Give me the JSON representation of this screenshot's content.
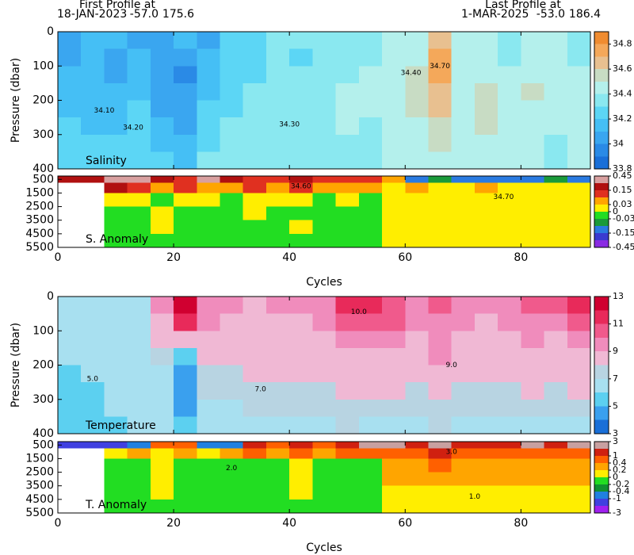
{
  "header": {
    "first_title": "First Profile at",
    "first_date": "18-JAN-2023",
    "first_lat": "-57.0",
    "first_lon": "175.6",
    "last_title": "Last Profile at",
    "last_date": "1-MAR-2025",
    "last_lat": "-53.0",
    "last_lon": "186.4"
  },
  "chart_data": [
    {
      "type": "heatmap",
      "label": "Salinity",
      "ylabel": "Pressure (dbar)",
      "x": [
        2,
        6,
        10,
        14,
        18,
        22,
        26,
        30,
        34,
        38,
        42,
        46,
        50,
        54,
        58,
        62,
        66,
        70,
        74,
        78,
        82,
        86,
        90
      ],
      "y": [
        25,
        75,
        125,
        175,
        225,
        275,
        325,
        375
      ],
      "values": [
        [
          34.05,
          34.1,
          34.1,
          34.05,
          34.0,
          34.1,
          34.0,
          34.2,
          34.2,
          34.3,
          34.3,
          34.3,
          34.3,
          34.3,
          34.4,
          34.45,
          34.65,
          34.45,
          34.4,
          34.35,
          34.45,
          34.4,
          34.35
        ],
        [
          34.05,
          34.1,
          34.05,
          34.1,
          34.0,
          34.05,
          34.1,
          34.2,
          34.25,
          34.3,
          34.25,
          34.3,
          34.35,
          34.35,
          34.45,
          34.45,
          34.7,
          34.45,
          34.4,
          34.35,
          34.45,
          34.45,
          34.35
        ],
        [
          34.1,
          34.1,
          34.05,
          34.15,
          34.0,
          33.95,
          34.1,
          34.2,
          34.2,
          34.3,
          34.3,
          34.35,
          34.35,
          34.4,
          34.45,
          34.5,
          34.7,
          34.45,
          34.45,
          34.4,
          34.45,
          34.45,
          34.4
        ],
        [
          34.1,
          34.1,
          34.1,
          34.15,
          34.0,
          34.0,
          34.15,
          34.25,
          34.3,
          34.3,
          34.35,
          34.35,
          34.4,
          34.4,
          34.45,
          34.5,
          34.65,
          34.45,
          34.5,
          34.4,
          34.5,
          34.45,
          34.4
        ],
        [
          34.15,
          34.1,
          34.1,
          34.2,
          34.05,
          34.0,
          34.2,
          34.25,
          34.3,
          34.35,
          34.35,
          34.35,
          34.4,
          34.4,
          34.45,
          34.5,
          34.6,
          34.45,
          34.5,
          34.4,
          34.45,
          34.4,
          34.4
        ],
        [
          34.2,
          34.15,
          34.15,
          34.2,
          34.1,
          34.0,
          34.2,
          34.3,
          34.3,
          34.35,
          34.35,
          34.35,
          34.4,
          34.35,
          34.45,
          34.45,
          34.55,
          34.45,
          34.5,
          34.45,
          34.4,
          34.4,
          34.4
        ],
        [
          34.2,
          34.2,
          34.2,
          34.25,
          34.15,
          34.1,
          34.25,
          34.3,
          34.35,
          34.35,
          34.3,
          34.35,
          34.35,
          34.35,
          34.4,
          34.4,
          34.5,
          34.4,
          34.45,
          34.4,
          34.4,
          34.35,
          34.4
        ],
        [
          34.25,
          34.25,
          34.2,
          34.25,
          34.2,
          34.15,
          34.3,
          34.3,
          34.35,
          34.35,
          34.35,
          34.35,
          34.35,
          34.35,
          34.4,
          34.4,
          34.45,
          34.4,
          34.4,
          34.4,
          34.4,
          34.35,
          34.4
        ]
      ],
      "xlim": [
        0,
        92
      ],
      "ylim": [
        0,
        400
      ],
      "y_inverted": true,
      "xticks": [
        0,
        20,
        40,
        60,
        80
      ],
      "yticks": [
        0,
        100,
        200,
        300,
        400
      ],
      "show_xtick_labels": false,
      "levels": [
        33.8,
        33.9,
        34.0,
        34.1,
        34.2,
        34.3,
        34.4,
        34.5,
        34.6,
        34.7,
        34.8,
        34.9
      ],
      "colors": [
        "#1a6fd8",
        "#2a8ae6",
        "#3aa6f0",
        "#45bff5",
        "#5cd6f5",
        "#8ae8f0",
        "#b4f0ec",
        "#c8dcc4",
        "#e8c090",
        "#f4a85a",
        "#f08c30"
      ],
      "colorbar_ticks": [
        34.8,
        34.6,
        34.4,
        34.2,
        34,
        33.8
      ],
      "annotations": [
        {
          "text": "34.70",
          "x": 66,
          "y": 100
        },
        {
          "text": "34.40",
          "x": 61,
          "y": 120
        },
        {
          "text": "34.30",
          "x": 40,
          "y": 270
        },
        {
          "text": "34.10",
          "x": 8,
          "y": 230
        },
        {
          "text": "34.20",
          "x": 13,
          "y": 280
        }
      ]
    },
    {
      "type": "heatmap",
      "label": "S. Anomaly",
      "xlabel": "Cycles",
      "x": [
        2,
        6,
        10,
        14,
        18,
        22,
        26,
        30,
        34,
        38,
        42,
        46,
        50,
        54,
        58,
        62,
        66,
        70,
        74,
        78,
        82,
        86,
        90
      ],
      "y": [
        500,
        1000,
        2000,
        3000,
        4000,
        5000
      ],
      "values": [
        [
          0.2,
          0.2,
          0.3,
          0.3,
          0.2,
          0.1,
          0.3,
          0.2,
          0.1,
          0.1,
          0.2,
          0.1,
          0.1,
          0.1,
          0.05,
          -0.1,
          -0.05,
          -0.1,
          -0.1,
          -0.15,
          -0.1,
          -0.05,
          -0.1
        ],
        [
          null,
          null,
          0.2,
          0.1,
          0.05,
          0.1,
          0.05,
          0.05,
          0.1,
          0.05,
          0.1,
          0.05,
          0.05,
          0.05,
          0.02,
          0.05,
          0.02,
          0.02,
          0.05,
          0.02,
          0.02,
          0.02,
          0.02
        ],
        [
          null,
          null,
          0.02,
          0.02,
          -0.02,
          0.02,
          0.02,
          -0.02,
          0.02,
          0.01,
          0.02,
          -0.01,
          0.02,
          -0.01,
          0.01,
          0.01,
          0.01,
          0.01,
          0.01,
          0.01,
          0.01,
          0.01,
          0.01
        ],
        [
          null,
          null,
          -0.02,
          -0.02,
          0.01,
          -0.02,
          -0.02,
          -0.02,
          0.01,
          -0.02,
          -0.02,
          -0.02,
          -0.02,
          -0.02,
          0.01,
          0.01,
          0.01,
          0.01,
          0.01,
          0.01,
          0.01,
          0.01,
          0.01
        ],
        [
          null,
          null,
          -0.01,
          -0.02,
          0.01,
          -0.02,
          -0.02,
          -0.02,
          -0.02,
          -0.02,
          0.01,
          -0.02,
          -0.02,
          -0.02,
          0.01,
          0.01,
          0.01,
          0.01,
          0.01,
          0.01,
          0.01,
          0.01,
          0.01
        ],
        [
          null,
          null,
          -0.02,
          -0.02,
          -0.02,
          -0.02,
          -0.02,
          -0.02,
          -0.02,
          -0.02,
          -0.02,
          -0.02,
          -0.02,
          -0.02,
          0.01,
          0.01,
          0.01,
          0.01,
          0.01,
          0.01,
          0.01,
          0.01,
          0.01
        ]
      ],
      "xlim": [
        0,
        92
      ],
      "ylim": [
        250,
        5500
      ],
      "y_inverted": true,
      "xticks": [
        0,
        20,
        40,
        60,
        80
      ],
      "yticks": [
        500,
        1500,
        2500,
        3500,
        4500,
        5500
      ],
      "show_xtick_labels": true,
      "levels": [
        -0.45,
        -0.3,
        -0.15,
        -0.09,
        -0.03,
        0,
        0.03,
        0.09,
        0.15,
        0.3,
        0.45
      ],
      "colors": [
        "#8a2be2",
        "#3a3ad0",
        "#2a7ae0",
        "#1a9a3a",
        "#22dd22",
        "#ffee00",
        "#ffa500",
        "#e03020",
        "#b01010",
        "#d8a0a0"
      ],
      "colorbar_ticks": [
        0.45,
        0.15,
        0.03,
        0,
        -0.03,
        -0.15,
        -0.45
      ],
      "annotations": [
        {
          "text": "34.60",
          "x": 42,
          "y": 1000
        },
        {
          "text": "34.70",
          "x": 77,
          "y": 1800
        }
      ]
    },
    {
      "type": "heatmap",
      "label": "Temperature",
      "ylabel": "Pressure (dbar)",
      "x": [
        2,
        6,
        10,
        14,
        18,
        22,
        26,
        30,
        34,
        38,
        42,
        46,
        50,
        54,
        58,
        62,
        66,
        70,
        74,
        78,
        82,
        86,
        90
      ],
      "y": [
        25,
        75,
        125,
        175,
        225,
        275,
        325,
        375
      ],
      "values": [
        [
          6.5,
          6.5,
          6.5,
          6.8,
          9,
          12,
          9.5,
          9,
          8.5,
          9,
          9,
          9,
          11,
          11.5,
          10.5,
          9.5,
          10,
          9.5,
          9,
          9.5,
          10,
          10,
          11.5
        ],
        [
          6.5,
          6.5,
          6.5,
          6.8,
          8.5,
          11,
          9,
          8.5,
          8.5,
          8.8,
          8.5,
          9,
          10,
          10.5,
          10,
          9,
          9.8,
          9,
          8.8,
          9,
          9.5,
          9.5,
          10
        ],
        [
          6.5,
          6.5,
          6.3,
          6.5,
          8,
          8,
          8.5,
          8.5,
          8.3,
          8.5,
          8.5,
          8.5,
          9,
          9,
          9,
          8.5,
          9.5,
          8.5,
          8.5,
          8.5,
          9,
          8.8,
          9
        ],
        [
          6.3,
          6.3,
          6.2,
          6.5,
          7.5,
          5,
          8,
          8,
          8,
          8.2,
          8.3,
          8.3,
          8.5,
          8.5,
          8.5,
          8.3,
          9,
          8.3,
          8.2,
          8.3,
          8.5,
          8.5,
          8.5
        ],
        [
          5.5,
          6,
          6.1,
          6.3,
          6.8,
          4.5,
          7.5,
          7.5,
          8,
          8,
          8,
          8,
          8.2,
          8.2,
          8.2,
          8,
          8.5,
          8,
          8,
          8,
          8.2,
          8.2,
          8.2
        ],
        [
          5.5,
          5.8,
          6,
          6.2,
          6.5,
          4.5,
          7,
          7.2,
          7.5,
          7.8,
          7.8,
          7.5,
          8,
          8,
          8,
          7.5,
          8,
          7.5,
          7.5,
          7.8,
          8,
          7.5,
          8
        ],
        [
          5.5,
          5.5,
          6,
          6.2,
          6.5,
          4.5,
          6.8,
          6.8,
          7.2,
          7.2,
          7.2,
          7.5,
          7.5,
          7.5,
          7.2,
          7,
          7.5,
          7,
          7,
          7.2,
          7.5,
          7.2,
          7.5
        ],
        [
          5.5,
          5.5,
          5.8,
          6.2,
          6.5,
          5,
          6.5,
          6.5,
          6.8,
          6.8,
          6.8,
          6.8,
          7,
          6.8,
          6.8,
          6.8,
          7,
          6.8,
          6.8,
          6.8,
          6.8,
          6.8,
          6.8
        ]
      ],
      "xlim": [
        0,
        92
      ],
      "ylim": [
        0,
        400
      ],
      "y_inverted": true,
      "xticks": [
        0,
        20,
        40,
        60,
        80
      ],
      "yticks": [
        0,
        100,
        200,
        300,
        400
      ],
      "show_xtick_labels": false,
      "levels": [
        3,
        4,
        5,
        6,
        7,
        8,
        9,
        10,
        11,
        12,
        13
      ],
      "colors": [
        "#1a6fd8",
        "#3aa0ee",
        "#5cd0f0",
        "#a8e0f0",
        "#b8d4e2",
        "#f0b8d4",
        "#f08cbc",
        "#f05a8c",
        "#e82a5a",
        "#d00030"
      ],
      "colorbar_ticks": [
        13,
        11,
        9,
        7,
        5,
        3
      ],
      "annotations": [
        {
          "text": "7.0",
          "x": 35,
          "y": 270
        },
        {
          "text": "9.0",
          "x": 68,
          "y": 200
        },
        {
          "text": "10.0",
          "x": 52,
          "y": 45
        },
        {
          "text": "5.0",
          "x": 6,
          "y": 240
        }
      ]
    },
    {
      "type": "heatmap",
      "label": "T. Anomaly",
      "xlabel": "Cycles",
      "x": [
        2,
        6,
        10,
        14,
        18,
        22,
        26,
        30,
        34,
        38,
        42,
        46,
        50,
        54,
        58,
        62,
        66,
        70,
        74,
        78,
        82,
        86,
        90
      ],
      "y": [
        500,
        1000,
        2000,
        3000,
        4000,
        5000
      ],
      "values": [
        [
          -1.5,
          -1.5,
          -1.5,
          -0.5,
          0.5,
          0.5,
          -1,
          -0.5,
          1,
          0.5,
          1,
          0.5,
          1,
          2,
          2.5,
          1.5,
          2.5,
          1.5,
          1.5,
          1.5,
          2,
          1.5,
          2
        ],
        [
          null,
          null,
          0.1,
          0.3,
          0.1,
          0.3,
          0.1,
          0.3,
          0.5,
          0.3,
          0.5,
          0.3,
          0.5,
          0.6,
          0.8,
          0.7,
          1.2,
          0.6,
          0.8,
          0.6,
          0.7,
          0.5,
          0.6
        ],
        [
          null,
          null,
          -0.1,
          -0.1,
          0.1,
          -0.1,
          -0.1,
          -0.1,
          -0.1,
          -0.1,
          0.1,
          -0.1,
          -0.1,
          -0.1,
          0.3,
          0.3,
          0.5,
          0.3,
          0.3,
          0.3,
          0.3,
          0.3,
          0.3
        ],
        [
          null,
          null,
          -0.1,
          -0.1,
          0.1,
          -0.1,
          -0.1,
          -0.1,
          -0.1,
          -0.1,
          0.1,
          -0.1,
          -0.1,
          -0.1,
          0.3,
          0.3,
          0.3,
          0.25,
          0.3,
          0.25,
          0.25,
          0.25,
          0.25
        ],
        [
          null,
          null,
          -0.1,
          -0.1,
          0.1,
          -0.1,
          -0.1,
          -0.1,
          -0.1,
          -0.1,
          0.1,
          -0.1,
          -0.1,
          -0.1,
          0.15,
          0.15,
          0.15,
          0.15,
          0.15,
          0.15,
          0.15,
          0.15,
          0.15
        ],
        [
          null,
          null,
          -0.1,
          -0.1,
          -0.1,
          -0.1,
          -0.1,
          -0.1,
          -0.1,
          -0.1,
          -0.1,
          -0.1,
          -0.1,
          -0.1,
          0.1,
          0.1,
          0.1,
          0.1,
          0.1,
          0.1,
          0.1,
          0.1,
          0.1
        ]
      ],
      "xlim": [
        0,
        92
      ],
      "ylim": [
        250,
        5500
      ],
      "y_inverted": true,
      "xticks": [
        0,
        20,
        40,
        60,
        80
      ],
      "yticks": [
        500,
        1500,
        2500,
        3500,
        4500,
        5500
      ],
      "show_xtick_labels": true,
      "levels": [
        -3,
        -2,
        -1,
        -0.4,
        -0.2,
        0,
        0.2,
        0.4,
        1,
        2,
        3
      ],
      "colors": [
        "#a020f0",
        "#4040e0",
        "#2080e0",
        "#109030",
        "#22dd22",
        "#ffee00",
        "#ffa500",
        "#ff6000",
        "#d02010",
        "#c8a0a0"
      ],
      "colorbar_ticks": [
        3,
        1,
        0.4,
        0.2,
        0,
        -0.2,
        -0.4,
        -1,
        -3
      ],
      "annotations": [
        {
          "text": "2.0",
          "x": 30,
          "y": 2200
        },
        {
          "text": "1.0",
          "x": 72,
          "y": 4300
        },
        {
          "text": "3.0",
          "x": 68,
          "y": 1000
        }
      ]
    }
  ]
}
